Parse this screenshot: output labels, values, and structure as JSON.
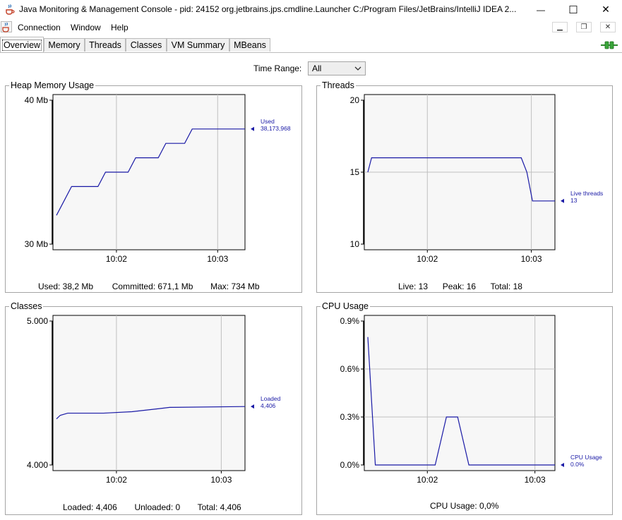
{
  "window": {
    "title": "Java Monitoring & Management Console - pid: 24152 org.jetbrains.jps.cmdline.Launcher C:/Program Files/JetBrains/IntelliJ IDEA 2...",
    "minimize_glyph": "—",
    "maximize_glyph": "☐",
    "close_glyph": "✕"
  },
  "menu": {
    "items": [
      "Connection",
      "Window",
      "Help"
    ],
    "mdi_buttons": [
      "▁",
      "❐",
      "✕"
    ]
  },
  "tabs": [
    "Overview",
    "Memory",
    "Threads",
    "Classes",
    "VM Summary",
    "MBeans"
  ],
  "time_range": {
    "label": "Time Range:",
    "value": "All"
  },
  "colors": {
    "series": "#1a1aa6",
    "grid": "#c0c0c0",
    "plot_bg": "#f7f7f7"
  },
  "panels": {
    "heap": {
      "title": "Heap Memory Usage",
      "stats": {
        "used": "Used: 38,2 Mb",
        "committed": "Committed: 671,1 Mb",
        "max": "Max: 734 Mb"
      }
    },
    "threads": {
      "title": "Threads",
      "stats": {
        "live": "Live: 13",
        "peak": "Peak: 16",
        "total": "Total: 18"
      }
    },
    "classes": {
      "title": "Classes",
      "stats": {
        "loaded": "Loaded: 4,406",
        "unloaded": "Unloaded: 0",
        "total": "Total: 4,406"
      }
    },
    "cpu": {
      "title": "CPU Usage",
      "stats": {
        "usage": "CPU Usage: 0,0%"
      }
    }
  },
  "chart_data": [
    {
      "id": "heap",
      "type": "line",
      "yticks": [
        "40 Mb",
        "30 Mb"
      ],
      "ylim": [
        30,
        40
      ],
      "xticks": [
        "10:02",
        "10:03"
      ],
      "x": [
        0,
        0.04,
        0.08,
        0.22,
        0.26,
        0.38,
        0.42,
        0.54,
        0.58,
        0.68,
        0.72,
        0.84,
        0.88,
        1.0
      ],
      "series": [
        {
          "name": "Used",
          "current": "38,173,968",
          "values": [
            32,
            33,
            34,
            34,
            35,
            35,
            36,
            36,
            37,
            37,
            38,
            38,
            38,
            38
          ]
        }
      ]
    },
    {
      "id": "threads",
      "type": "line",
      "yticks": [
        "20",
        "15",
        "10"
      ],
      "ylim": [
        10,
        20
      ],
      "xticks": [
        "10:02",
        "10:03"
      ],
      "x": [
        0,
        0.02,
        0.82,
        0.85,
        0.88,
        1.0
      ],
      "series": [
        {
          "name": "Live threads",
          "current": "13",
          "values": [
            15,
            16,
            16,
            15,
            13,
            13
          ]
        }
      ]
    },
    {
      "id": "classes",
      "type": "line",
      "yticks": [
        "5.000",
        "4.000"
      ],
      "ylim": [
        4000,
        5000
      ],
      "xticks": [
        "10:02",
        "10:03"
      ],
      "x": [
        0,
        0.02,
        0.06,
        0.25,
        0.4,
        0.55,
        0.6,
        1.0
      ],
      "series": [
        {
          "name": "Loaded",
          "current": "4,406",
          "values": [
            4320,
            4345,
            4360,
            4360,
            4370,
            4392,
            4400,
            4406
          ]
        }
      ]
    },
    {
      "id": "cpu",
      "type": "line",
      "yticks": [
        "0.9%",
        "0.6%",
        "0.3%",
        "0.0%"
      ],
      "ylim": [
        0,
        0.9
      ],
      "xticks": [
        "10:02",
        "10:03"
      ],
      "x": [
        0,
        0.04,
        0.36,
        0.42,
        0.48,
        0.54,
        1.0
      ],
      "series": [
        {
          "name": "CPU Usage",
          "current": "0.0%",
          "values": [
            0.8,
            0.0,
            0.0,
            0.3,
            0.3,
            0.0,
            0.0
          ]
        }
      ]
    }
  ]
}
